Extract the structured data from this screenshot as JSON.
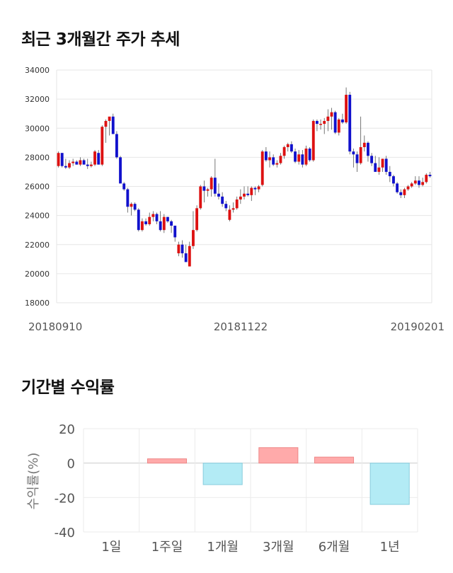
{
  "titles": {
    "candlestick": "최근 3개월간 주가 추세",
    "returns": "기간별 수익률"
  },
  "colors": {
    "up": "#dd1111",
    "down": "#1111cc",
    "bar_positive_fill": "#ffaaaa",
    "bar_positive_stroke": "#ee8888",
    "bar_negative_fill": "#b3ebf5",
    "bar_negative_stroke": "#88ccdd"
  },
  "chart_data": [
    {
      "type": "candlestick",
      "title": "최근 3개월간 주가 추세",
      "xlabel": "",
      "ylabel": "",
      "ylim": [
        18000,
        34000
      ],
      "yticks": [
        18000,
        20000,
        22000,
        24000,
        26000,
        28000,
        30000,
        32000,
        34000
      ],
      "xticks": [
        "20180910",
        "20181122",
        "20190201"
      ],
      "grid": true,
      "candles_ohlc": [
        [
          27400,
          28400,
          27300,
          28300
        ],
        [
          28300,
          28300,
          27300,
          27400
        ],
        [
          27400,
          27900,
          27200,
          27300
        ],
        [
          27300,
          27800,
          27200,
          27600
        ],
        [
          27600,
          27900,
          27400,
          27700
        ],
        [
          27700,
          27800,
          27500,
          27500
        ],
        [
          27500,
          28000,
          27400,
          27800
        ],
        [
          27800,
          27900,
          27500,
          27500
        ],
        [
          27500,
          27900,
          27200,
          27400
        ],
        [
          27400,
          27700,
          27300,
          27500
        ],
        [
          27500,
          28500,
          27400,
          28400
        ],
        [
          28300,
          28500,
          27500,
          27500
        ],
        [
          27500,
          30200,
          27400,
          30100
        ],
        [
          30100,
          30600,
          29000,
          30500
        ],
        [
          30500,
          30700,
          29500,
          30800
        ],
        [
          30800,
          31000,
          29700,
          29600
        ],
        [
          29600,
          29800,
          27900,
          28000
        ],
        [
          28000,
          28100,
          26300,
          26200
        ],
        [
          26200,
          26300,
          25700,
          25800
        ],
        [
          25800,
          25900,
          24200,
          24600
        ],
        [
          24600,
          24900,
          24000,
          24800
        ],
        [
          24800,
          24900,
          24300,
          24400
        ],
        [
          24400,
          24500,
          22900,
          23000
        ],
        [
          23000,
          23800,
          22900,
          23600
        ],
        [
          23600,
          23800,
          23300,
          23400
        ],
        [
          23400,
          24200,
          23300,
          23900
        ],
        [
          23900,
          24300,
          23600,
          24100
        ],
        [
          24100,
          24200,
          23400,
          23600
        ],
        [
          23600,
          24300,
          22900,
          23000
        ],
        [
          23000,
          24100,
          22800,
          23900
        ],
        [
          23900,
          23900,
          23500,
          23600
        ],
        [
          23600,
          23700,
          22800,
          23300
        ],
        [
          23300,
          23300,
          22200,
          22500
        ],
        [
          21400,
          22200,
          21200,
          22000
        ],
        [
          22000,
          22300,
          21100,
          21400
        ],
        [
          21400,
          22000,
          21000,
          20800
        ],
        [
          20500,
          22200,
          20500,
          21900
        ],
        [
          21900,
          24300,
          21700,
          23000
        ],
        [
          23000,
          24700,
          22900,
          24500
        ],
        [
          24500,
          26100,
          24400,
          26000
        ],
        [
          26000,
          26400,
          24900,
          25700
        ],
        [
          25700,
          25900,
          25300,
          25800
        ],
        [
          25800,
          26700,
          25300,
          26600
        ],
        [
          26600,
          27900,
          25300,
          25500
        ],
        [
          25500,
          26200,
          25100,
          25300
        ],
        [
          25300,
          25600,
          24600,
          24800
        ],
        [
          24800,
          25000,
          24300,
          24500
        ],
        [
          23700,
          24700,
          23600,
          24400
        ],
        [
          24400,
          24900,
          24200,
          24500
        ],
        [
          24500,
          25300,
          24400,
          25100
        ],
        [
          25100,
          25800,
          24800,
          25300
        ],
        [
          25300,
          26000,
          25100,
          25500
        ],
        [
          25500,
          26000,
          25300,
          25400
        ],
        [
          25400,
          26000,
          25000,
          25900
        ],
        [
          25900,
          26000,
          25400,
          25800
        ],
        [
          25800,
          26100,
          25600,
          26000
        ],
        [
          26100,
          28500,
          26000,
          28400
        ],
        [
          28400,
          28700,
          27700,
          27800
        ],
        [
          27800,
          28400,
          27300,
          28000
        ],
        [
          28000,
          28200,
          27400,
          27500
        ],
        [
          27500,
          27800,
          27300,
          27600
        ],
        [
          27600,
          28300,
          27500,
          28100
        ],
        [
          28100,
          28800,
          27900,
          28700
        ],
        [
          28700,
          29000,
          28400,
          28900
        ],
        [
          28900,
          29100,
          28300,
          28400
        ],
        [
          28400,
          28600,
          27600,
          27700
        ],
        [
          27700,
          28500,
          27500,
          28200
        ],
        [
          28200,
          28500,
          27300,
          27500
        ],
        [
          27500,
          28800,
          27400,
          28600
        ],
        [
          28600,
          28700,
          27700,
          27800
        ],
        [
          27800,
          30600,
          27700,
          30500
        ],
        [
          30500,
          30600,
          29800,
          30300
        ],
        [
          30300,
          30600,
          29900,
          30300
        ],
        [
          30300,
          30700,
          29600,
          30500
        ],
        [
          30500,
          31300,
          29800,
          30800
        ],
        [
          30800,
          31400,
          29900,
          31100
        ],
        [
          31100,
          31200,
          29600,
          29700
        ],
        [
          29700,
          30700,
          29500,
          30600
        ],
        [
          30600,
          31000,
          30300,
          30400
        ],
        [
          30400,
          32800,
          30300,
          32300
        ],
        [
          32300,
          32500,
          28200,
          28400
        ],
        [
          28400,
          28600,
          27300,
          28200
        ],
        [
          28200,
          28400,
          27000,
          27600
        ],
        [
          27600,
          30800,
          27500,
          28700
        ],
        [
          28700,
          29500,
          28400,
          29000
        ],
        [
          29000,
          29100,
          27700,
          28100
        ],
        [
          28100,
          28300,
          27400,
          27600
        ],
        [
          27600,
          28100,
          27100,
          27000
        ],
        [
          27000,
          28000,
          26800,
          27300
        ],
        [
          27300,
          27900,
          27000,
          27900
        ],
        [
          27900,
          28100,
          26800,
          27000
        ],
        [
          27000,
          27400,
          26300,
          26700
        ],
        [
          26700,
          26800,
          26000,
          26200
        ],
        [
          26200,
          26300,
          25500,
          25600
        ],
        [
          25600,
          25800,
          25200,
          25400
        ],
        [
          25400,
          25900,
          25200,
          25800
        ],
        [
          25800,
          26100,
          25700,
          26000
        ],
        [
          26000,
          26300,
          25900,
          26200
        ],
        [
          26200,
          26700,
          26100,
          26400
        ],
        [
          26400,
          26700,
          25900,
          26100
        ],
        [
          26100,
          26600,
          26000,
          26300
        ],
        [
          26300,
          26900,
          26200,
          26800
        ],
        [
          26800,
          27000,
          26600,
          26700
        ]
      ]
    },
    {
      "type": "bar",
      "title": "기간별 수익률",
      "xlabel": "",
      "ylabel": "수익률(%)",
      "ylim": [
        -40,
        20
      ],
      "yticks": [
        -40,
        -20,
        0,
        20
      ],
      "categories": [
        "1일",
        "1주일",
        "1개월",
        "3개월",
        "6개월",
        "1년"
      ],
      "values": [
        0,
        2.5,
        -12.5,
        9,
        3.5,
        -24
      ],
      "grid": true
    }
  ]
}
